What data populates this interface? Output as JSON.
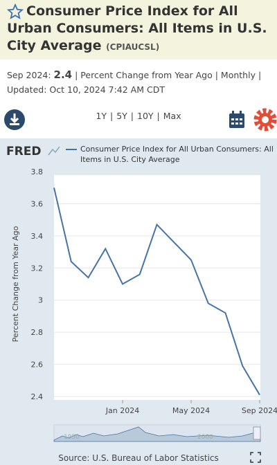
{
  "header": {
    "title": "Consumer Price Index for All Urban Consumers: All Items in U.S. City Average",
    "series_id": "(CPIAUCSL)",
    "period": "Sep 2024:",
    "latest_value": 2.4,
    "details": "| Percent Change from Year Ago | Monthly |",
    "updated_label": "Updated:",
    "updated": "Oct 10, 2024 7:42 AM CDT"
  },
  "ranges": [
    "1Y",
    "5Y",
    "10Y",
    "Max"
  ],
  "logo": "FRED",
  "chart_data": {
    "type": "line",
    "y_label": "Percent Change from Year Ago",
    "x": [
      "2023-09",
      "2023-10",
      "2023-11",
      "2023-12",
      "2024-01",
      "2024-02",
      "2024-03",
      "2024-04",
      "2024-05",
      "2024-06",
      "2024-07",
      "2024-08",
      "2024-09"
    ],
    "series": [
      {
        "name": "Consumer Price Index for All Urban Consumers: All Items in U.S. City Average",
        "color": "#4572a7",
        "values": [
          3.7,
          3.24,
          3.14,
          3.32,
          3.1,
          3.16,
          3.47,
          3.36,
          3.25,
          2.98,
          2.92,
          2.59,
          2.41
        ]
      }
    ],
    "xlim": [
      "2023-09",
      "2024-09"
    ],
    "xticks": [
      {
        "value": "2024-01",
        "label": "Jan 2024"
      },
      {
        "value": "2024-05",
        "label": "May 2024"
      },
      {
        "value": "2024-09",
        "label": "Sep 2024"
      }
    ],
    "ylim": [
      2.4,
      3.8
    ],
    "yticks": [
      2.4,
      2.6,
      2.8,
      3.0,
      3.2,
      3.4,
      3.6,
      3.8
    ],
    "grid": true
  },
  "navigator_labels": [
    "1950",
    "2000"
  ],
  "source": "Source: U.S. Bureau of Labor Statistics"
}
